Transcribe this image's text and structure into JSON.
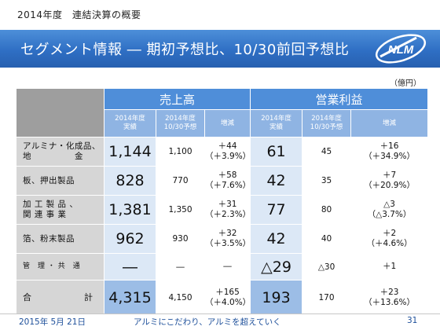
{
  "header": {
    "caption": "2014年度　連結決算の概要",
    "title": "セグメント情報 ― 期初予想比、10/30前回予想比",
    "unit": "（億円）"
  },
  "table": {
    "group_sales": "売上高",
    "group_profit": "営業利益",
    "sub_actual": [
      "2014年度",
      "実績"
    ],
    "sub_forecast": [
      "2014年度",
      "10/30予想"
    ],
    "sub_change": "増減",
    "rows": [
      {
        "label": [
          "アルミナ・化成品、",
          "地　　　　　金"
        ],
        "sales_actual": "1,144",
        "sales_forecast": "1,100",
        "sales_change": [
          "＋44",
          "（＋3.9%）"
        ],
        "profit_actual": "61",
        "profit_forecast": "45",
        "profit_change": [
          "＋16",
          "（＋34.9%）"
        ]
      },
      {
        "label": [
          "板、押出製品",
          ""
        ],
        "sales_actual": "828",
        "sales_forecast": "770",
        "sales_change": [
          "＋58",
          "（＋7.6%）"
        ],
        "profit_actual": "42",
        "profit_forecast": "35",
        "profit_change": [
          "＋7",
          "（＋20.9%）"
        ]
      },
      {
        "label": [
          "加 工 製 品 、",
          "関 連 事 業"
        ],
        "sales_actual": "1,381",
        "sales_forecast": "1,350",
        "sales_change": [
          "＋31",
          "（＋2.3%）"
        ],
        "profit_actual": "77",
        "profit_forecast": "80",
        "profit_change": [
          "△3",
          "（△3.7%）"
        ]
      },
      {
        "label": [
          "箔、粉末製品",
          ""
        ],
        "sales_actual": "962",
        "sales_forecast": "930",
        "sales_change": [
          "＋32",
          "（＋3.5%）"
        ],
        "profit_actual": "42",
        "profit_forecast": "40",
        "profit_change": [
          "＋2",
          "（＋4.6%）"
        ]
      },
      {
        "label": [
          "管　理 ・ 共　通",
          ""
        ],
        "sales_actual": "―",
        "sales_forecast": "―",
        "sales_change": [
          "―",
          ""
        ],
        "profit_actual": "△29",
        "profit_forecast": "△30",
        "profit_change": [
          "＋1",
          ""
        ]
      }
    ],
    "total": {
      "label_left": "合",
      "label_right": "計",
      "sales_actual": "4,315",
      "sales_forecast": "4,150",
      "sales_change": [
        "＋165",
        "（＋4.0%）"
      ],
      "profit_actual": "193",
      "profit_forecast": "170",
      "profit_change": [
        "＋23",
        "（＋13.6%）"
      ]
    }
  },
  "footer": {
    "date": "2015年 5月 21日",
    "slogan": "アルミにこだわり、アルミを超えていく",
    "page": "31"
  },
  "logo": {
    "text": "NLM"
  },
  "colors": {
    "title_bar": "#2f6fc4",
    "group_header": "#4f8ed9",
    "sub_header": "#8fb4e3",
    "value_highlight": "#dce8f6",
    "row_label": "#d6d6d6",
    "footer_text": "#1d4f9a"
  }
}
